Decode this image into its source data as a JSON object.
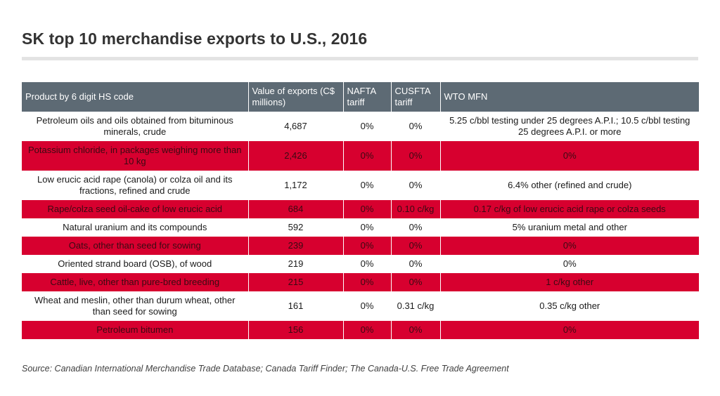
{
  "title": "SK top 10 merchandise exports to U.S., 2016",
  "source": "Source: Canadian International Merchandise Trade Database; Canada Tariff Finder; The Canada-U.S. Free Trade Agreement",
  "colors": {
    "header_bg": "#5d6a74",
    "row_alt": "#d7002f",
    "row_base": "#ffffff",
    "title": "#333333"
  },
  "headers": {
    "product": "Product by 6 digit HS code",
    "value": "Value of exports (C$ millions)",
    "nafta": "NAFTA tariff",
    "cusfta": "CUSFTA tariff",
    "wto": "WTO MFN"
  },
  "chart_data": {
    "type": "table",
    "title": "SK top 10 merchandise exports to U.S., 2016",
    "columns": [
      "Product by 6 digit HS code",
      "Value of exports (C$ millions)",
      "NAFTA tariff",
      "CUSFTA tariff",
      "WTO MFN"
    ],
    "rows": [
      {
        "product": "Petroleum oils and oils obtained from bituminous minerals, crude",
        "value": "4,687",
        "nafta": "0%",
        "cusfta": "0%",
        "wto": "5.25 c/bbl testing under 25 degrees A.P.I.; 10.5 c/bbl testing 25 degrees A.P.I. or more"
      },
      {
        "product": "Potassium chloride, in packages weighing more than 10 kg",
        "value": "2,426",
        "nafta": "0%",
        "cusfta": "0%",
        "wto": "0%"
      },
      {
        "product": "Low erucic acid rape (canola) or colza oil and its fractions, refined and crude",
        "value": "1,172",
        "nafta": "0%",
        "cusfta": "0%",
        "wto": "6.4% other (refined and crude)"
      },
      {
        "product": "Rape/colza seed oil-cake of low erucic acid",
        "value": "684",
        "nafta": "0%",
        "cusfta": "0.10 c/kg",
        "wto": "0.17 c/kg of low erucic acid rape or colza seeds"
      },
      {
        "product": "Natural uranium and its compounds",
        "value": "592",
        "nafta": "0%",
        "cusfta": "0%",
        "wto": "5% uranium metal and other"
      },
      {
        "product": "Oats, other than seed for sowing",
        "value": "239",
        "nafta": "0%",
        "cusfta": "0%",
        "wto": "0%"
      },
      {
        "product": "Oriented strand board (OSB), of wood",
        "value": "219",
        "nafta": "0%",
        "cusfta": "0%",
        "wto": "0%"
      },
      {
        "product": "Cattle, live, other than pure-bred breeding",
        "value": "215",
        "nafta": "0%",
        "cusfta": "0%",
        "wto": "1 c/kg other"
      },
      {
        "product": "Wheat and meslin, other than durum wheat, other than seed for sowing",
        "value": "161",
        "nafta": "0%",
        "cusfta": "0.31 c/kg",
        "wto": "0.35 c/kg other"
      },
      {
        "product": "Petroleum bitumen",
        "value": "156",
        "nafta": "0%",
        "cusfta": "0%",
        "wto": "0%"
      }
    ]
  }
}
